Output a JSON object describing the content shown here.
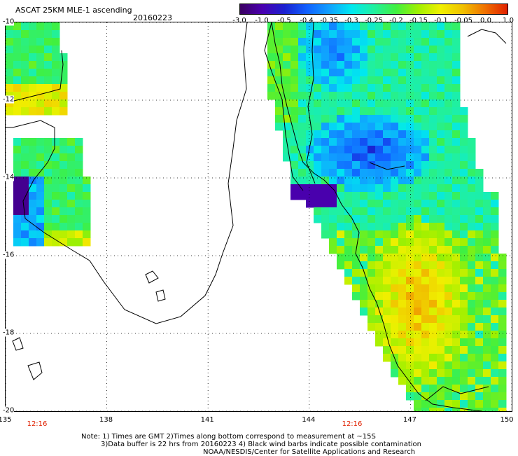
{
  "header": {
    "title": "ASCAT 25KM MLE-1 ascending",
    "date": "20160223"
  },
  "colorbar": {
    "tick_labels": [
      "-3.0",
      "-1.0",
      "-0.5",
      "-0.4",
      "-0.35",
      "-0.3",
      "-0.25",
      "-0.2",
      "-0.15",
      "-0.1",
      "-0.05",
      "0.0",
      "1.0"
    ],
    "stops": [
      "#3a0060",
      "#4a00b0",
      "#1a20d0",
      "#1060ff",
      "#10a0ff",
      "#00e8f0",
      "#20f0a0",
      "#40f040",
      "#a0f000",
      "#f0f000",
      "#f0c000",
      "#f07000",
      "#e02000"
    ]
  },
  "map": {
    "lat_labels": [
      "-10",
      "-12",
      "-14",
      "-16",
      "-18",
      "-20"
    ],
    "lon_labels": [
      "135",
      "138",
      "141",
      "144",
      "147",
      "150"
    ],
    "lat_range": [
      -20,
      -10
    ],
    "lon_range": [
      135,
      150
    ],
    "time_labels": [
      "12:16",
      "12:16"
    ]
  },
  "footer": {
    "note_line1": "Note: 1) Times are GMT 2)Times along bottom correspond to measurement at ~15S",
    "note_line2": "3)Data buffer is 22 hrs from 20160223 4) Black wind barbs indicate possible contamination",
    "credit": "NOAA/NESDIS/Center for Satellite Applications and Research"
  }
}
